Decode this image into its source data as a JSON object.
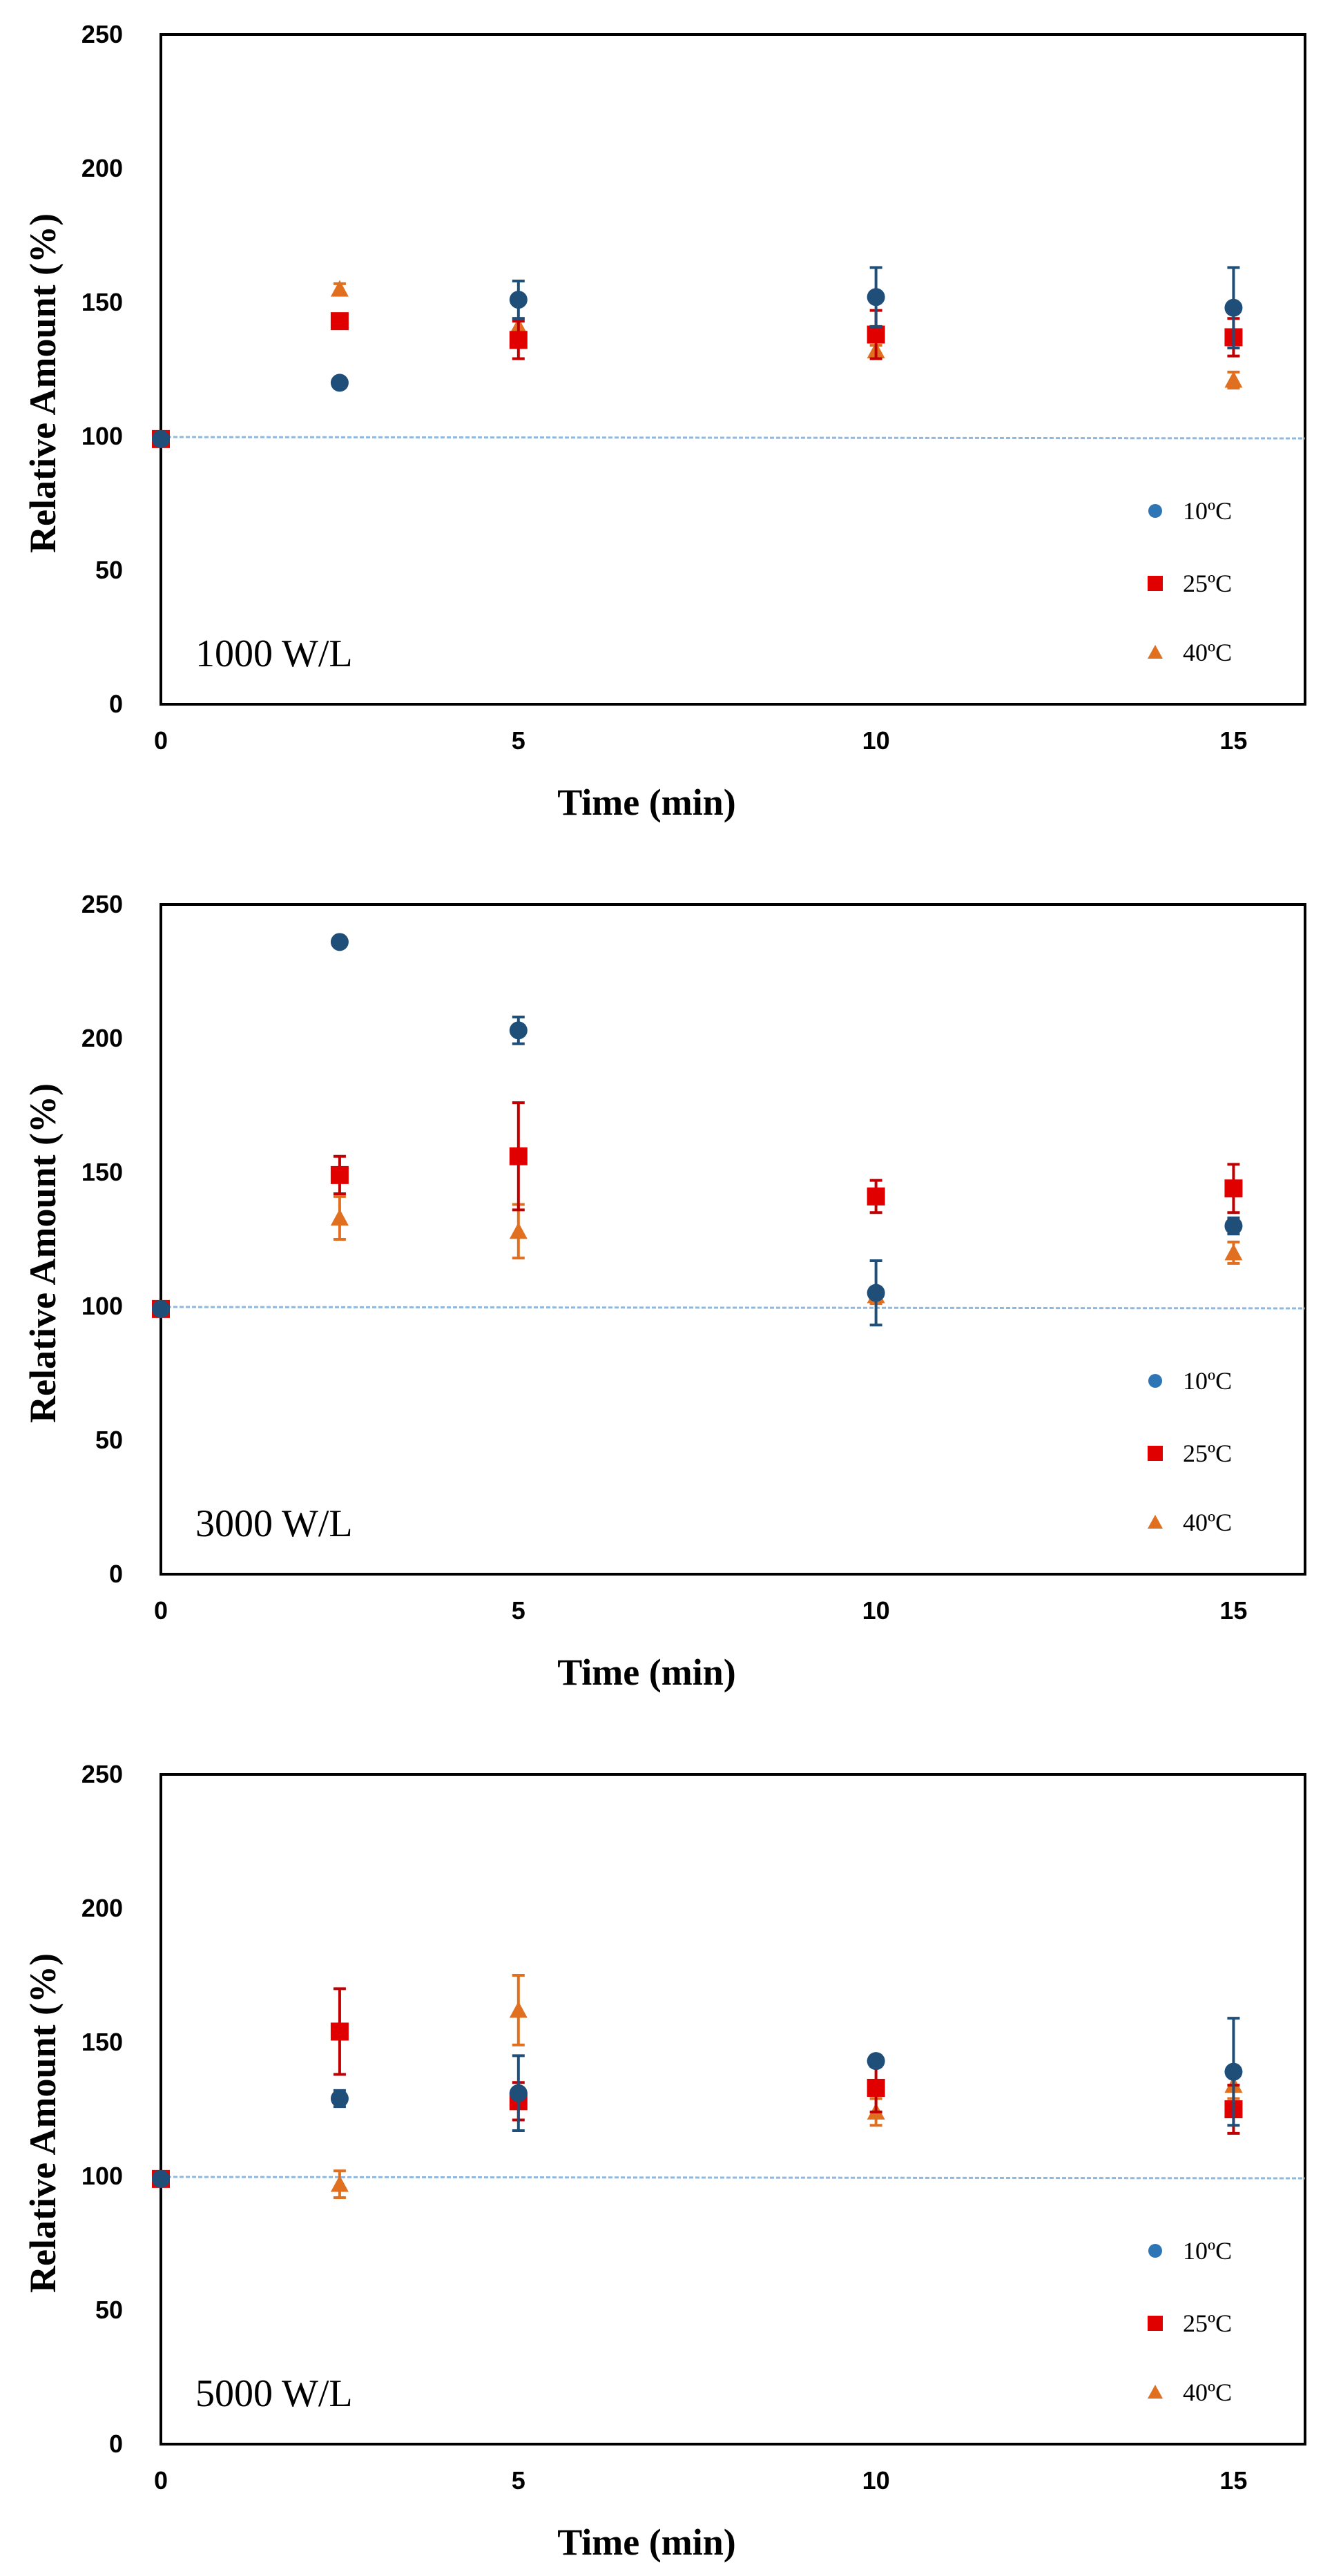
{
  "colors": {
    "c10": "#1F4E79",
    "c10_legend": "#2E75B6",
    "c25": "#E00000",
    "c25_err": "#C00000",
    "c40": "#E07020",
    "baseline": "#8FB8E0",
    "frame": "#000000"
  },
  "chart_data": [
    {
      "type": "scatter",
      "annotation": "1000 W/L",
      "xlabel": "Time (min)",
      "ylabel": "Relative Amount (%)",
      "xlim": [
        0,
        16
      ],
      "ylim": [
        0,
        250
      ],
      "xticks": [
        "0",
        "5",
        "10",
        "15"
      ],
      "yticks": [
        "0",
        "50",
        "100",
        "150",
        "200",
        "250"
      ],
      "baseline": 100,
      "legend": {
        "position": "bottom-right",
        "entries": [
          "10ºC",
          "25ºC",
          "40ºC"
        ]
      },
      "series": [
        {
          "name": "10ºC",
          "marker": "circle",
          "x": [
            0,
            2.5,
            5,
            10,
            15
          ],
          "values": [
            99,
            120,
            151,
            152,
            148
          ],
          "errors": [
            0,
            1,
            7,
            11,
            15
          ]
        },
        {
          "name": "25ºC",
          "marker": "square",
          "x": [
            0,
            2.5,
            5,
            10,
            15
          ],
          "values": [
            99,
            143,
            136,
            138,
            137
          ],
          "errors": [
            0,
            1,
            7,
            9,
            7
          ]
        },
        {
          "name": "40ºC",
          "marker": "triangle",
          "x": [
            0,
            2.5,
            5,
            10,
            15
          ],
          "values": [
            99,
            155,
            141,
            132,
            121
          ],
          "errors": [
            0,
            2,
            3,
            2,
            3
          ]
        }
      ]
    },
    {
      "type": "scatter",
      "annotation": "3000 W/L",
      "xlabel": "Time (min)",
      "ylabel": "Relative Amount (%)",
      "xlim": [
        0,
        16
      ],
      "ylim": [
        0,
        250
      ],
      "xticks": [
        "0",
        "5",
        "10",
        "15"
      ],
      "yticks": [
        "0",
        "50",
        "100",
        "150",
        "200",
        "250"
      ],
      "baseline": 100,
      "legend": {
        "position": "bottom-right",
        "entries": [
          "10ºC",
          "25ºC",
          "40ºC"
        ]
      },
      "series": [
        {
          "name": "10ºC",
          "marker": "circle",
          "x": [
            0,
            2.5,
            5,
            10,
            15
          ],
          "values": [
            99,
            236,
            203,
            105,
            130
          ],
          "errors": [
            0,
            1,
            5,
            12,
            3
          ]
        },
        {
          "name": "25ºC",
          "marker": "square",
          "x": [
            0,
            2.5,
            5,
            10,
            15
          ],
          "values": [
            99,
            149,
            156,
            141,
            144
          ],
          "errors": [
            0,
            7,
            20,
            6,
            9
          ]
        },
        {
          "name": "40ºC",
          "marker": "triangle",
          "x": [
            0,
            2.5,
            5,
            10,
            15
          ],
          "values": [
            99,
            133,
            128,
            104,
            120
          ],
          "errors": [
            0,
            8,
            10,
            3,
            4
          ]
        }
      ]
    },
    {
      "type": "scatter",
      "annotation": "5000 W/L",
      "xlabel": "Time (min)",
      "ylabel": "Relative Amount (%)",
      "xlim": [
        0,
        16
      ],
      "ylim": [
        0,
        250
      ],
      "xticks": [
        "0",
        "5",
        "10",
        "15"
      ],
      "yticks": [
        "0",
        "50",
        "100",
        "150",
        "200",
        "250"
      ],
      "baseline": 100,
      "legend": {
        "position": "bottom-right",
        "entries": [
          "10ºC",
          "25ºC",
          "40ºC"
        ]
      },
      "series": [
        {
          "name": "10ºC",
          "marker": "circle",
          "x": [
            0,
            2.5,
            5,
            10,
            15
          ],
          "values": [
            99,
            129,
            131,
            143,
            139
          ],
          "errors": [
            0,
            3,
            14,
            2,
            20
          ]
        },
        {
          "name": "25ºC",
          "marker": "square",
          "x": [
            0,
            2.5,
            5,
            10,
            15
          ],
          "values": [
            99,
            154,
            128,
            133,
            125
          ],
          "errors": [
            0,
            16,
            7,
            9,
            9
          ]
        },
        {
          "name": "40ºC",
          "marker": "triangle",
          "x": [
            0,
            2.5,
            5,
            10,
            15
          ],
          "values": [
            99,
            97,
            162,
            124,
            134
          ],
          "errors": [
            0,
            5,
            13,
            5,
            5
          ]
        }
      ]
    }
  ]
}
